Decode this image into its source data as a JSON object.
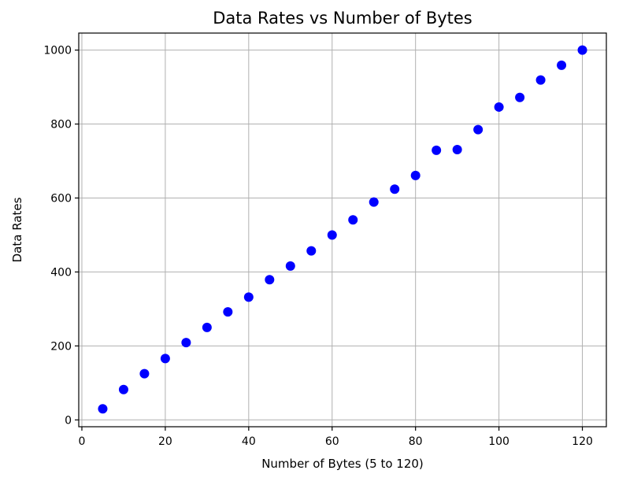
{
  "chart_data": {
    "type": "scatter",
    "title": "Data Rates vs Number of Bytes",
    "xlabel": "Number of Bytes (5 to 120)",
    "ylabel": "Data Rates",
    "xlim": [
      -0.75,
      125.75
    ],
    "ylim": [
      -18.5,
      1046
    ],
    "xticks": [
      0,
      20,
      40,
      60,
      80,
      100,
      120
    ],
    "yticks": [
      0,
      200,
      400,
      600,
      800,
      1000
    ],
    "xtick_labels": [
      "0",
      "20",
      "40",
      "60",
      "80",
      "100",
      "120"
    ],
    "ytick_labels": [
      "0",
      "200",
      "400",
      "600",
      "800",
      "1000"
    ],
    "grid": true,
    "marker_color": "#0000ff",
    "series": [
      {
        "x": [
          5,
          10,
          15,
          20,
          25,
          30,
          35,
          40,
          45,
          50,
          55,
          60,
          65,
          70,
          75,
          80,
          85,
          90,
          95,
          100,
          105,
          110,
          115,
          120
        ],
        "y": [
          30,
          82,
          125,
          166,
          209,
          250,
          292,
          332,
          379,
          416,
          457,
          500,
          541,
          589,
          624,
          661,
          729,
          731,
          785,
          846,
          872,
          919,
          959,
          1000
        ]
      }
    ]
  }
}
